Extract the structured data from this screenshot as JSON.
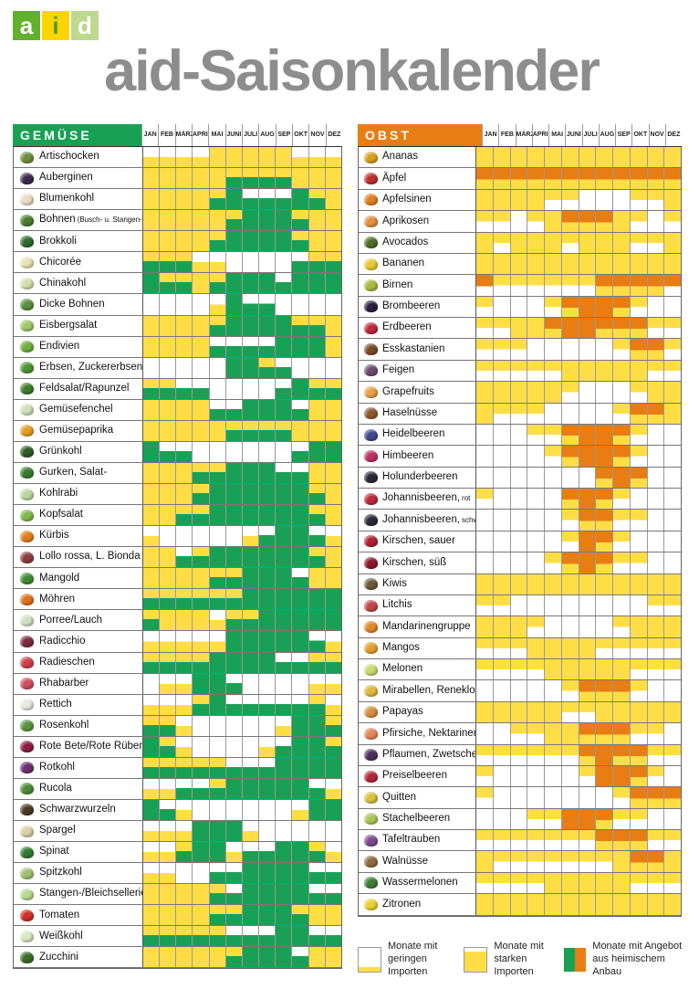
{
  "title": "aid-Saisonkalender",
  "logo": {
    "letters": [
      {
        "char": "a",
        "bg": "#63b02d",
        "fg": "#ffffff"
      },
      {
        "char": "i",
        "bg": "#ffd400",
        "fg": "#4f9a23"
      },
      {
        "char": "d",
        "bg": "#bdd98e",
        "fg": "#ffffff"
      }
    ]
  },
  "colors": {
    "import_yellow": "#ffde45",
    "veg_green": "#18a155",
    "fruit_orange": "#e87d14",
    "title_gray": "#8d8d8d"
  },
  "legend": [
    {
      "id": "low-imports",
      "line1": "Monate mit",
      "line2": "geringen Importen"
    },
    {
      "id": "strong-imports",
      "line1": "Monate mit",
      "line2": "starken Importen"
    },
    {
      "id": "domestic",
      "line1": "Monate mit Angebot",
      "line2": "aus heimischem Anbau"
    }
  ],
  "chart_data": {
    "type": "heatmap",
    "x": [
      "JAN",
      "FEB",
      "MÄRZ",
      "APRIL",
      "MAI",
      "JUNI",
      "JULI",
      "AUG",
      "SEP",
      "OKT",
      "NOV",
      "DEZ"
    ],
    "cell_state_key": {
      "0": "white = low imports",
      "1": "half yellow = moderate imports",
      "2": "full yellow = strong imports",
      "3": "half domestic color + white = some domestic supply, low imports",
      "4": "half domestic color + yellow = domestic supply plus imports",
      "5": "full domestic color = peak domestic season"
    },
    "groups": [
      {
        "name": "GEMÜSE",
        "domestic_color": "#18a155",
        "rows": [
          {
            "label": "Artischocken",
            "suffix": "",
            "icon_color": "#6b8f3d",
            "states": "111122222111"
          },
          {
            "label": "Auberginen",
            "suffix": "",
            "icon_color": "#3d2a52",
            "states": "222224444222"
          },
          {
            "label": "Blumenkohl",
            "suffix": "",
            "icon_color": "#e8dcc0",
            "states": "222245333542"
          },
          {
            "label": "Bohnen",
            "suffix": "(Busch- u. Stangen-)",
            "icon_color": "#4a7d2e",
            "states": "222224555422"
          },
          {
            "label": "Brokkoli",
            "suffix": "",
            "icon_color": "#2e6b2e",
            "states": "222245555422"
          },
          {
            "label": "Chicorée",
            "suffix": "",
            "icon_color": "#e6e2b8",
            "states": "444110000344"
          },
          {
            "label": "Chinakohl",
            "suffix": "",
            "icon_color": "#cfe0a8",
            "states": "544245553555"
          },
          {
            "label": "Dicke Bohnen",
            "suffix": "",
            "icon_color": "#5a8f3c",
            "states": "000015330000"
          },
          {
            "label": "Eisbergsalat",
            "suffix": "",
            "icon_color": "#9fc86a",
            "states": "222245555442"
          },
          {
            "label": "Endivien",
            "suffix": "",
            "icon_color": "#6fae3e",
            "states": "222233335552"
          },
          {
            "label": "Erbsen, Zuckererbsen",
            "suffix": "",
            "icon_color": "#4d9635",
            "states": "000005543000"
          },
          {
            "label": "Feldsalat/Rapunzel",
            "suffix": "",
            "icon_color": "#3f7d2b",
            "states": "443300003544"
          },
          {
            "label": "Gemüsefenchel",
            "suffix": "",
            "icon_color": "#cfe0b8",
            "states": "222233555322"
          },
          {
            "label": "Gemüsepaprika",
            "suffix": "",
            "icon_color": "#e0a020",
            "states": "222224444222"
          },
          {
            "label": "Grünkohl",
            "suffix": "",
            "icon_color": "#2f5d25",
            "states": "533000000355"
          },
          {
            "label": "Gurken, Salat-",
            "suffix": "",
            "icon_color": "#3a7d2f",
            "states": "222445553322"
          },
          {
            "label": "Kohlrabi",
            "suffix": "",
            "icon_color": "#b8d8a0",
            "states": "222455555542"
          },
          {
            "label": "Kopfsalat",
            "suffix": "",
            "icon_color": "#7db84a",
            "states": "224455555542"
          },
          {
            "label": "Kürbis",
            "suffix": "",
            "icon_color": "#e08020",
            "states": "100000135531"
          },
          {
            "label": "Lollo rossa, L. Bionda",
            "suffix": "",
            "icon_color": "#8f3d3d",
            "states": "223455555542"
          },
          {
            "label": "Mangold",
            "suffix": "",
            "icon_color": "#3f8d35",
            "states": "222244555322"
          },
          {
            "label": "Möhren",
            "suffix": "",
            "icon_color": "#e07020",
            "states": "444444555555"
          },
          {
            "label": "Porree/Lauch",
            "suffix": "",
            "icon_color": "#cfe0c0",
            "states": "422214455555"
          },
          {
            "label": "Radicchio",
            "suffix": "",
            "icon_color": "#7d2d3d",
            "states": "111115555531"
          },
          {
            "label": "Radieschen",
            "suffix": "",
            "icon_color": "#d04048",
            "states": "444455553344"
          },
          {
            "label": "Rhabarber",
            "suffix": "",
            "icon_color": "#d05060",
            "states": "011553000011"
          },
          {
            "label": "Rettich",
            "suffix": "",
            "icon_color": "#e8e8e0",
            "states": "111453333341"
          },
          {
            "label": "Rosenkohl",
            "suffix": "",
            "icon_color": "#5a9640",
            "states": "441000001554"
          },
          {
            "label": "Rote Bete/Rote Rüben",
            "suffix": "",
            "icon_color": "#8d2040",
            "states": "541000013554"
          },
          {
            "label": "Rotkohl",
            "suffix": "",
            "icon_color": "#6d3070",
            "states": "444443335555"
          },
          {
            "label": "Rucola",
            "suffix": "",
            "icon_color": "#4d8d35",
            "states": "113345555531"
          },
          {
            "label": "Schwarzwurzeln",
            "suffix": "",
            "icon_color": "#4d3a28",
            "states": "531000000155"
          },
          {
            "label": "Spargel",
            "suffix": "",
            "icon_color": "#d8d0a8",
            "states": "111555100000"
          },
          {
            "label": "Spinat",
            "suffix": "",
            "icon_color": "#2f7d2f",
            "states": "114551335541"
          },
          {
            "label": "Spitzkohl",
            "suffix": "",
            "icon_color": "#9fc070",
            "states": "110033555533"
          },
          {
            "label": "Stangen-/Bleichsellerie",
            "suffix": "",
            "icon_color": "#b8d890",
            "states": "222243555533"
          },
          {
            "label": "Tomaten",
            "suffix": "",
            "icon_color": "#d03028",
            "states": "222244555422"
          },
          {
            "label": "Weißkohl",
            "suffix": "",
            "icon_color": "#d8e8c0",
            "states": "444443335533"
          },
          {
            "label": "Zucchini",
            "suffix": "",
            "icon_color": "#3a6d28",
            "states": "222224555322"
          }
        ]
      },
      {
        "name": "OBST",
        "domestic_color": "#e87d14",
        "rows": [
          {
            "label": "Ananas",
            "suffix": "",
            "icon_color": "#d8a020",
            "states": "222222222222"
          },
          {
            "label": "Äpfel",
            "suffix": "",
            "icon_color": "#c03030",
            "states": "444444444444"
          },
          {
            "label": "Apfelsinen",
            "suffix": "",
            "icon_color": "#e08020",
            "states": "222211000112"
          },
          {
            "label": "Aprikosen",
            "suffix": "",
            "icon_color": "#e09040",
            "states": "110124442101"
          },
          {
            "label": "Avocados",
            "suffix": "",
            "icon_color": "#4d6d28",
            "states": "212221222112"
          },
          {
            "label": "Bananen",
            "suffix": "",
            "icon_color": "#e8c830",
            "states": "222222222222"
          },
          {
            "label": "Birnen",
            "suffix": "",
            "icon_color": "#a8b840",
            "states": "311111144443"
          },
          {
            "label": "Brombeeren",
            "suffix": "",
            "icon_color": "#2d2040",
            "states": "100014554100"
          },
          {
            "label": "Erdbeeren",
            "suffix": "",
            "icon_color": "#c02838",
            "states": "112245544411"
          },
          {
            "label": "Esskastanien",
            "suffix": "",
            "icon_color": "#7d4a28",
            "states": "111000001441"
          },
          {
            "label": "Feigen",
            "suffix": "",
            "icon_color": "#6d4a70",
            "states": "111112222211"
          },
          {
            "label": "Grapefruits",
            "suffix": "",
            "icon_color": "#e8a048",
            "states": "222221000122"
          },
          {
            "label": "Haselnüsse",
            "suffix": "",
            "icon_color": "#8d5a30",
            "states": "211100001442"
          },
          {
            "label": "Heidelbeeren",
            "suffix": "",
            "icon_color": "#3d4a8d",
            "states": "000114554100"
          },
          {
            "label": "Himbeeren",
            "suffix": "",
            "icon_color": "#c03060",
            "states": "000014554100"
          },
          {
            "label": "Holunderbeeren",
            "suffix": "",
            "icon_color": "#2d2838",
            "states": "000000045400"
          },
          {
            "label": "Johannisbeeren,",
            "suffix": "rot",
            "icon_color": "#c02840",
            "states": "100004541000"
          },
          {
            "label": "Johannisbeeren,",
            "suffix": "schwarz",
            "icon_color": "#302838",
            "states": "000001441100"
          },
          {
            "label": "Kirschen, sauer",
            "suffix": "",
            "icon_color": "#b02030",
            "states": "000001541000"
          },
          {
            "label": "Kirschen, süß",
            "suffix": "",
            "icon_color": "#8d1828",
            "states": "000014541100"
          },
          {
            "label": "Kiwis",
            "suffix": "",
            "icon_color": "#6d5a38",
            "states": "222222222222"
          },
          {
            "label": "Litchis",
            "suffix": "",
            "icon_color": "#c04848",
            "states": "110000000011"
          },
          {
            "label": "Mandarinengruppe",
            "suffix": "",
            "icon_color": "#e08828",
            "states": "222100001222"
          },
          {
            "label": "Mangos",
            "suffix": "",
            "icon_color": "#e0a030",
            "states": "111222211111"
          },
          {
            "label": "Melonen",
            "suffix": "",
            "icon_color": "#c8d870",
            "states": "111122222111"
          },
          {
            "label": "Mirabellen, Renekloden",
            "suffix": "",
            "icon_color": "#e0b840",
            "states": "000001444100"
          },
          {
            "label": "Papayas",
            "suffix": "",
            "icon_color": "#d89040",
            "states": "222221122222"
          },
          {
            "label": "Pfirsiche, Nektarinen",
            "suffix": "",
            "icon_color": "#e08858",
            "states": "001122444110"
          },
          {
            "label": "Pflaumen, Zwetschen",
            "suffix": "",
            "icon_color": "#4d3060",
            "states": "111111454411"
          },
          {
            "label": "Preiselbeeren",
            "suffix": "",
            "icon_color": "#b02838",
            "states": "100000155410"
          },
          {
            "label": "Quitten",
            "suffix": "",
            "icon_color": "#d8c040",
            "states": "100000001444"
          },
          {
            "label": "Stachelbeeren",
            "suffix": "",
            "icon_color": "#a8c858",
            "states": "000115541100"
          },
          {
            "label": "Tafeltrauben",
            "suffix": "",
            "icon_color": "#7d4a8d",
            "states": "111111144411"
          },
          {
            "label": "Walnüsse",
            "suffix": "",
            "icon_color": "#8d6a40",
            "states": "211111112442"
          },
          {
            "label": "Wassermelonen",
            "suffix": "",
            "icon_color": "#3d7d35",
            "states": "111122222111"
          },
          {
            "label": "Zitronen",
            "suffix": "",
            "icon_color": "#e8d030",
            "states": "222222222222"
          }
        ]
      }
    ]
  }
}
